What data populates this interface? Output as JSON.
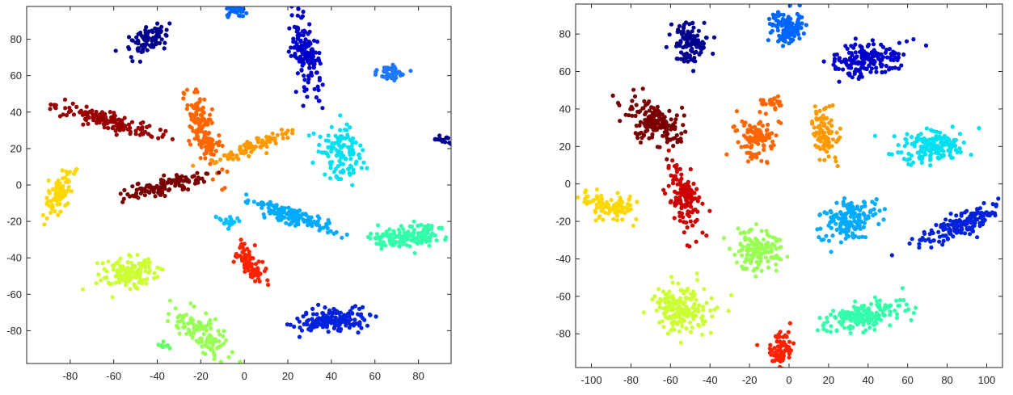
{
  "chart_data": [
    {
      "type": "scatter",
      "title": "",
      "xlabel": "",
      "ylabel": "",
      "xlim": [
        -100,
        95
      ],
      "ylim": [
        -98,
        98
      ],
      "xticks": [
        -80,
        -60,
        -40,
        -20,
        0,
        20,
        40,
        60,
        80
      ],
      "yticks": [
        -80,
        -60,
        -40,
        -20,
        0,
        20,
        40,
        60,
        80
      ],
      "xtick_labels": [
        "-80",
        "-60",
        "-40",
        "-20",
        "0",
        "20",
        "40",
        "60",
        "80"
      ],
      "ytick_labels": [
        "-80",
        "-60",
        "-40",
        "-20",
        "0",
        "20",
        "40",
        "60",
        "80"
      ],
      "grid": false,
      "legend": "none",
      "clusters": [
        {
          "color": "#00008f",
          "center": [
            -44,
            80
          ],
          "spread": [
            5,
            7
          ],
          "angle": -40,
          "count": 90
        },
        {
          "color": "#0000cd",
          "center": [
            28,
            72
          ],
          "spread": [
            4,
            13
          ],
          "angle": 10,
          "count": 160
        },
        {
          "color": "#0066ff",
          "center": [
            -4,
            95
          ],
          "spread": [
            3,
            2
          ],
          "angle": 0,
          "count": 30
        },
        {
          "color": "#1e78ff",
          "center": [
            68,
            62
          ],
          "spread": [
            6,
            3
          ],
          "angle": 0,
          "count": 50
        },
        {
          "color": "#000090",
          "center": [
            91,
            25
          ],
          "spread": [
            3,
            1.2
          ],
          "angle": -10,
          "count": 15
        },
        {
          "color": "#990000",
          "center": [
            -62,
            35
          ],
          "spread": [
            16,
            3
          ],
          "angle": -20,
          "count": 140
        },
        {
          "color": "#ff6600",
          "center": [
            -19,
            30
          ],
          "spread": [
            4,
            15
          ],
          "angle": 15,
          "count": 150
        },
        {
          "color": "#ff9900",
          "center": [
            5,
            22
          ],
          "spread": [
            14,
            2.5
          ],
          "angle": 25,
          "count": 90
        },
        {
          "color": "#00e0f0",
          "center": [
            45,
            18
          ],
          "spread": [
            6,
            10
          ],
          "angle": 10,
          "count": 120
        },
        {
          "color": "#7a0000",
          "center": [
            -35,
            0
          ],
          "spread": [
            13,
            3
          ],
          "angle": 15,
          "count": 120
        },
        {
          "color": "#ffd700",
          "center": [
            -85,
            -5
          ],
          "spread": [
            3.5,
            8
          ],
          "angle": -20,
          "count": 90
        },
        {
          "color": "#00aaff",
          "center": [
            22,
            -17
          ],
          "spread": [
            14,
            3
          ],
          "angle": -20,
          "count": 140
        },
        {
          "color": "#33ffaa",
          "center": [
            75,
            -28
          ],
          "spread": [
            12,
            4
          ],
          "angle": 5,
          "count": 150
        },
        {
          "color": "#00c0ff",
          "center": [
            -7,
            -20
          ],
          "spread": [
            3,
            2
          ],
          "angle": 0,
          "count": 20
        },
        {
          "color": "#ccff33",
          "center": [
            -52,
            -48
          ],
          "spread": [
            10,
            6
          ],
          "angle": 10,
          "count": 140
        },
        {
          "color": "#ff2200",
          "center": [
            3,
            -44
          ],
          "spread": [
            3,
            8
          ],
          "angle": 30,
          "count": 80
        },
        {
          "color": "#0022dd",
          "center": [
            40,
            -74
          ],
          "spread": [
            11,
            4
          ],
          "angle": 5,
          "count": 160
        },
        {
          "color": "#99ff55",
          "center": [
            -20,
            -82
          ],
          "spread": [
            5,
            12
          ],
          "angle": 40,
          "count": 110
        },
        {
          "color": "#66ff66",
          "center": [
            -38,
            -88
          ],
          "spread": [
            2,
            1
          ],
          "angle": 0,
          "count": 10
        }
      ]
    },
    {
      "type": "scatter",
      "title": "",
      "xlabel": "",
      "ylabel": "",
      "xlim": [
        -108,
        108
      ],
      "ylim": [
        -98,
        96
      ],
      "xticks": [
        -100,
        -80,
        -60,
        -40,
        -20,
        0,
        20,
        40,
        60,
        80,
        100
      ],
      "yticks": [
        -80,
        -60,
        -40,
        -20,
        0,
        20,
        40,
        60,
        80
      ],
      "xtick_labels": [
        "-100",
        "-80",
        "-60",
        "-40",
        "-20",
        "0",
        "20",
        "40",
        "60",
        "80",
        "100"
      ],
      "ytick_labels": [
        "-80",
        "-60",
        "-40",
        "-20",
        "0",
        "20",
        "40",
        "60",
        "80"
      ],
      "grid": false,
      "legend": "none",
      "clusters": [
        {
          "color": "#00008f",
          "center": [
            -50,
            76
          ],
          "spread": [
            6,
            8
          ],
          "angle": -10,
          "count": 110
        },
        {
          "color": "#0066ff",
          "center": [
            -1,
            84
          ],
          "spread": [
            6,
            6
          ],
          "angle": 0,
          "count": 110
        },
        {
          "color": "#0000cd",
          "center": [
            40,
            66
          ],
          "spread": [
            12,
            6
          ],
          "angle": 10,
          "count": 170
        },
        {
          "color": "#7a0000",
          "center": [
            -68,
            33
          ],
          "spread": [
            10,
            6
          ],
          "angle": -35,
          "count": 170
        },
        {
          "color": "#ff6600",
          "center": [
            -16,
            24
          ],
          "spread": [
            7,
            8
          ],
          "angle": -20,
          "count": 110
        },
        {
          "color": "#ff6600",
          "center": [
            -10,
            44
          ],
          "spread": [
            4,
            2
          ],
          "angle": 0,
          "count": 25
        },
        {
          "color": "#ff9900",
          "center": [
            18,
            26
          ],
          "spread": [
            4,
            10
          ],
          "angle": 10,
          "count": 90
        },
        {
          "color": "#00e0f0",
          "center": [
            71,
            20
          ],
          "spread": [
            12,
            6
          ],
          "angle": 0,
          "count": 160
        },
        {
          "color": "#ffd700",
          "center": [
            -90,
            -12
          ],
          "spread": [
            9,
            4
          ],
          "angle": -15,
          "count": 100
        },
        {
          "color": "#cc0000",
          "center": [
            -53,
            -8
          ],
          "spread": [
            5,
            12
          ],
          "angle": 15,
          "count": 130
        },
        {
          "color": "#00aaff",
          "center": [
            31,
            -19
          ],
          "spread": [
            10,
            7
          ],
          "angle": 25,
          "count": 150
        },
        {
          "color": "#0022dd",
          "center": [
            87,
            -22
          ],
          "spread": [
            15,
            4
          ],
          "angle": 25,
          "count": 170
        },
        {
          "color": "#99ff55",
          "center": [
            -16,
            -35
          ],
          "spread": [
            8,
            7
          ],
          "angle": 0,
          "count": 140
        },
        {
          "color": "#ccff33",
          "center": [
            -55,
            -67
          ],
          "spread": [
            10,
            9
          ],
          "angle": 0,
          "count": 170
        },
        {
          "color": "#33ffaa",
          "center": [
            37,
            -70
          ],
          "spread": [
            14,
            5
          ],
          "angle": 10,
          "count": 170
        },
        {
          "color": "#ff2200",
          "center": [
            -5,
            -88
          ],
          "spread": [
            4,
            6
          ],
          "angle": 0,
          "count": 80
        }
      ]
    }
  ]
}
